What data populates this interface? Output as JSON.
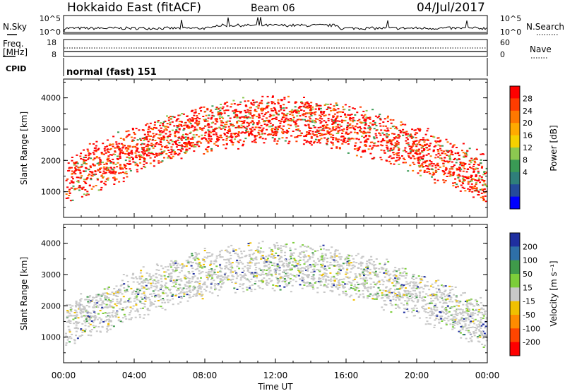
{
  "header": {
    "title": "Hokkaido East (fitACF)",
    "beam": "Beam 06",
    "date": "04/Jul/2017"
  },
  "status_panels": {
    "nsky_label": "N.Sky",
    "nsky_ticks": [
      "10^5",
      "10^0"
    ],
    "nsearch_label": "N.Search",
    "nsearch_ticks": [
      "10^5",
      "10^0"
    ],
    "freq_label_1": "Freq.",
    "freq_label_2": "[MHz]",
    "freq_ticks": [
      "18",
      "8"
    ],
    "nave_label": "Nave",
    "nave_ticks": [
      "60",
      "0"
    ],
    "cpid_label": "CPID",
    "cpid_value": "normal (fast) 151"
  },
  "chart_data": [
    {
      "type": "heatmap",
      "name": "power",
      "ylabel": "Slant Range [km]",
      "yticks": [
        "4000",
        "3000",
        "2000",
        "1000"
      ],
      "ylim": [
        180,
        4600
      ],
      "colorbar_label": "Power [dB]",
      "colorbar_ticks": [
        "28",
        "24",
        "20",
        "16",
        "12",
        "8",
        "4"
      ],
      "colorbar_colors": [
        "#ff0000",
        "#ff3c00",
        "#ff7800",
        "#ffaa00",
        "#f5d000",
        "#8cc850",
        "#3a9a55",
        "#2f7f7a",
        "#254b9a",
        "#0000ff"
      ]
    },
    {
      "type": "heatmap",
      "name": "velocity",
      "ylabel": "Slant Range [km]",
      "yticks": [
        "4000",
        "3000",
        "2000",
        "1000"
      ],
      "ylim": [
        180,
        4600
      ],
      "colorbar_label": "Velocity [m s⁻¹]",
      "colorbar_ticks": [
        "200",
        "100",
        "50",
        "15",
        "-15",
        "-50",
        "-100",
        "-200"
      ],
      "colorbar_colors": [
        "#1f2fa0",
        "#2e6fa8",
        "#3f9a4a",
        "#7ccd3a",
        "#c8c8c8",
        "#f0c000",
        "#ff8c00",
        "#ff4500",
        "#ff0000"
      ]
    }
  ],
  "time_axis": {
    "label": "Time UT",
    "ticks": [
      "00:00",
      "04:00",
      "08:00",
      "12:00",
      "16:00",
      "20:00",
      "00:00"
    ]
  }
}
